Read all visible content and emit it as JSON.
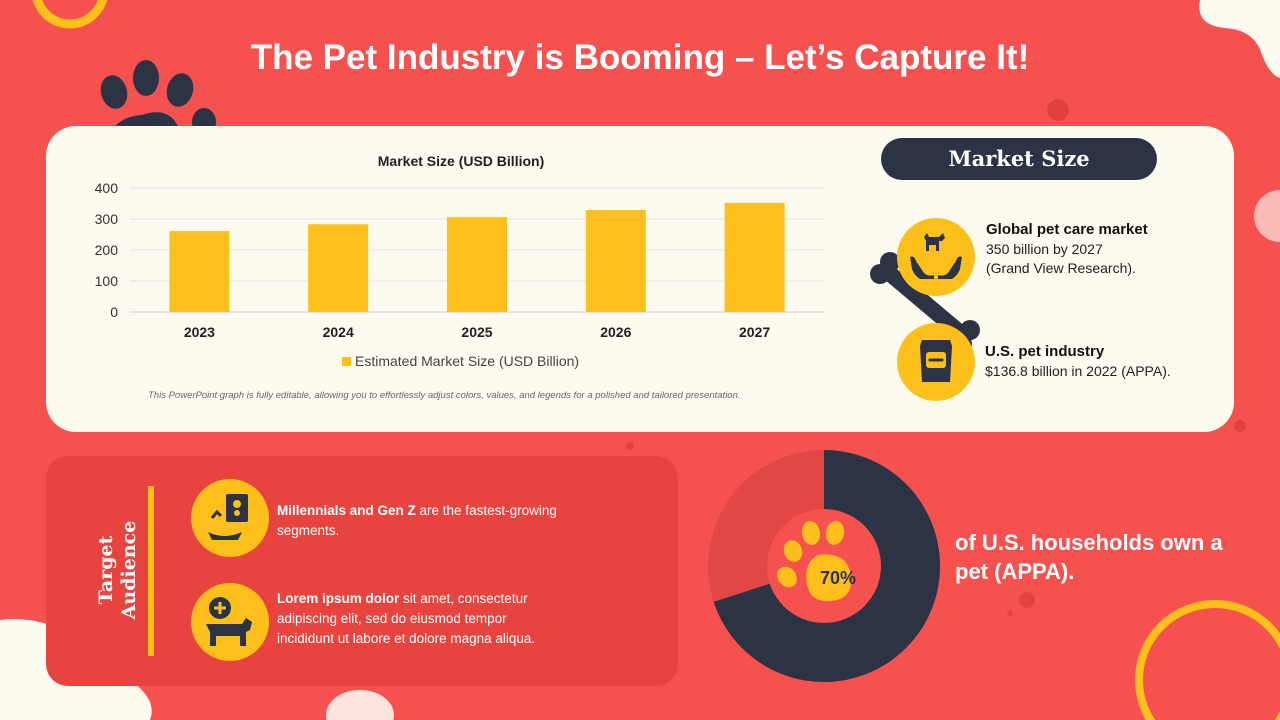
{
  "title": "The Pet Industry is Booming – Let’s Capture It!",
  "chart_data": {
    "type": "bar",
    "title": "Market Size (USD Billion)",
    "categories": [
      "2023",
      "2024",
      "2025",
      "2026",
      "2027"
    ],
    "series": [
      {
        "name": "Estimated Market Size (USD Billion)",
        "values": [
          261,
          283,
          306,
          329,
          352
        ]
      }
    ],
    "yticks": [
      "0",
      "100",
      "200",
      "300",
      "400"
    ],
    "ylim": [
      0,
      400
    ],
    "grid": true,
    "legend_position": "bottom",
    "bar_color": "#FDC01A"
  },
  "chart_note": "This PowerPoint graph is fully editable, allowing you to effortlessly adjust colors, values, and legends for a polished and tailored presentation.",
  "market": {
    "header": "Market Size",
    "global_title": "Global pet care market",
    "global_line1": "350 billion by 2027",
    "global_line2": "(Grand View Research).",
    "us_title": "U.S. pet industry",
    "us_line1": "$136.8 billion in 2022 (APPA)."
  },
  "audience": {
    "label_line1": "Target",
    "label_line2": "Audience",
    "item1_bold": "Millennials and Gen Z",
    "item1_rest": " are the fastest-growing segments.",
    "item2_bold": "Lorem ipsum dolor",
    "item2_rest": " sit amet, consectetur adipiscing elit, sed do eiusmod tempor incididunt ut labore et dolore magna aliqua."
  },
  "households": {
    "percent": 70,
    "percent_label": "70%",
    "text": "of U.S. households own a pet (APPA)."
  },
  "colors": {
    "background": "#F5524F",
    "accent": "#FDC01A",
    "navy": "#2C3345",
    "cream": "#FDFAF0"
  }
}
